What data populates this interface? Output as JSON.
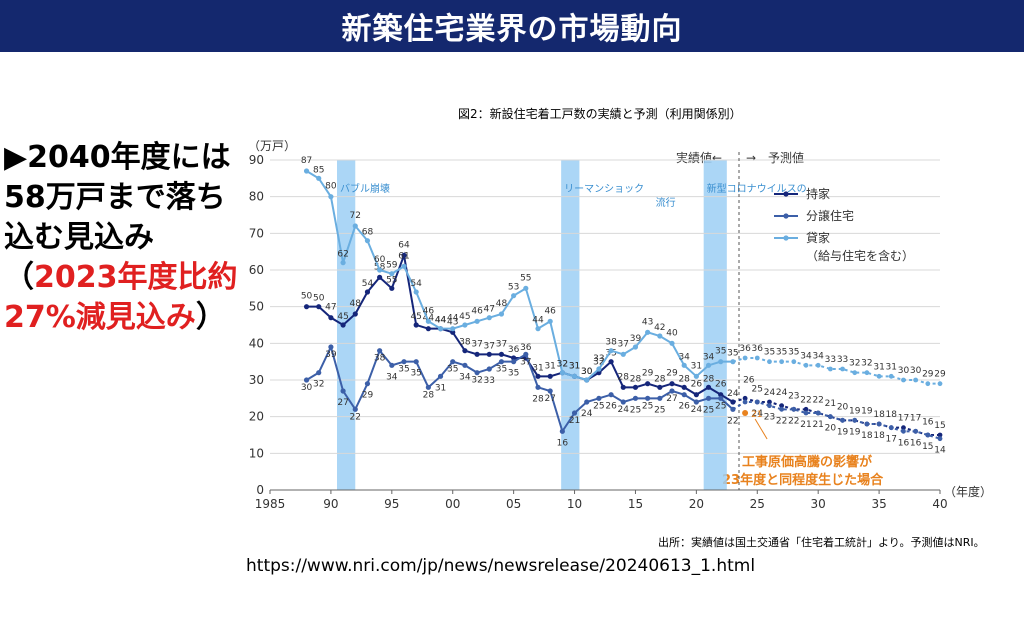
{
  "header": {
    "title": "新築住宅業界の市場動向"
  },
  "side": {
    "text_black": "▶2040年度には58万戸まで落ち込む見込み（",
    "text_red": "2023年度比約27%減見込み",
    "text_close": "）"
  },
  "url": "https://www.nri.com/jp/news/newsrelease/20240613_1.html",
  "colors": {
    "header_bg": "#14286e",
    "mochiie": "#15267a",
    "bunjo": "#3c5fa8",
    "kashiya": "#6aaee0",
    "band": "#9ccff5",
    "annotation": "#e8821e",
    "highlight_red": "#e02020"
  },
  "chart_data": {
    "type": "line",
    "title": "図2：新設住宅着工戸数の実績と予測（利用関係別）",
    "ylabel": "（万戸）",
    "xlabel": "（年度）",
    "ylim": [
      0,
      90
    ],
    "xlim": [
      1985,
      2040
    ],
    "yticks": [
      0,
      10,
      20,
      30,
      40,
      50,
      60,
      70,
      80,
      90
    ],
    "xticks": [
      1985,
      1990,
      1995,
      2000,
      2005,
      2010,
      2015,
      2020,
      2025,
      2030,
      2035,
      2040
    ],
    "xtick_labels": [
      "1985",
      "90",
      "95",
      "00",
      "05",
      "10",
      "15",
      "20",
      "25",
      "30",
      "35",
      "40"
    ],
    "grid": true,
    "legend_position": "top-right",
    "divider_year": 2023.5,
    "divider_left_label": "実績値←",
    "divider_right_label": "→　予測値",
    "shaded_periods": [
      {
        "label": "バブル崩壊",
        "from": 1990.5,
        "to": 1992.0
      },
      {
        "label": "リーマンショック",
        "from": 2008.9,
        "to": 2010.4
      },
      {
        "label": "新型コロナウイルスの",
        "label2": "流行",
        "from": 2020.6,
        "to": 2022.5
      }
    ],
    "series": [
      {
        "name": "持家",
        "color": "#15267a",
        "x": [
          1988,
          1989,
          1990,
          1991,
          1992,
          1993,
          1994,
          1995,
          1996,
          1997,
          1998,
          1999,
          2000,
          2001,
          2002,
          2003,
          2004,
          2005,
          2006,
          2007,
          2008,
          2009,
          2010,
          2011,
          2012,
          2013,
          2014,
          2015,
          2016,
          2017,
          2018,
          2019,
          2020,
          2021,
          2022,
          2023
        ],
        "values": [
          50,
          50,
          47,
          45,
          48,
          54,
          58,
          55,
          64,
          45,
          44,
          44,
          43,
          38,
          37,
          37,
          37,
          36,
          36,
          31,
          31,
          32,
          31,
          30,
          32,
          35,
          28,
          28,
          29,
          28,
          29,
          28,
          26,
          28,
          26,
          24
        ],
        "labels": [
          "50",
          "50",
          "47",
          "45",
          "48",
          "54",
          "58",
          "55",
          "64",
          "45",
          "44",
          "44",
          "43",
          "38",
          "37",
          "37",
          "37",
          "36",
          "36",
          "31",
          "31",
          "32",
          "31",
          "30",
          "32",
          "35",
          "28",
          "28",
          "29",
          "28",
          "29",
          "28",
          "26",
          "28",
          "26",
          "24"
        ],
        "forecast_x": [
          2024,
          2025,
          2026,
          2027,
          2028,
          2029,
          2030,
          2031,
          2032,
          2033,
          2034,
          2035,
          2036,
          2037,
          2038,
          2039,
          2040
        ],
        "forecast_values": [
          25,
          24,
          24,
          23,
          22,
          22,
          21,
          20,
          19,
          19,
          18,
          18,
          17,
          17,
          16,
          15,
          15
        ],
        "forecast_labels": [
          "",
          "",
          "",
          "",
          "",
          "",
          "",
          "",
          "",
          "",
          "",
          "",
          "",
          "",
          "",
          "",
          ""
        ]
      },
      {
        "name": "分譲住宅",
        "color": "#3c5fa8",
        "x": [
          1988,
          1989,
          1990,
          1991,
          1992,
          1993,
          1994,
          1995,
          1996,
          1997,
          1998,
          1999,
          2000,
          2001,
          2002,
          2003,
          2004,
          2005,
          2006,
          2007,
          2008,
          2009,
          2010,
          2011,
          2012,
          2013,
          2014,
          2015,
          2016,
          2017,
          2018,
          2019,
          2020,
          2021,
          2022,
          2023
        ],
        "values": [
          30,
          32,
          39,
          27,
          22,
          29,
          38,
          34,
          35,
          35,
          28,
          31,
          35,
          34,
          32,
          33,
          35,
          35,
          37,
          28,
          27,
          16,
          21,
          24,
          25,
          26,
          24,
          25,
          25,
          25,
          27,
          26,
          24,
          25,
          25,
          22
        ],
        "labels": [
          "30",
          "32",
          "39",
          "27",
          "22",
          "29",
          "38",
          "34",
          "35",
          "35",
          "28",
          "31",
          "35",
          "34",
          "32",
          "33",
          "35",
          "35",
          "37",
          "28",
          "27",
          "16",
          "21",
          "24",
          "25",
          "26",
          "24",
          "25",
          "25",
          "25",
          "27",
          "26",
          "24",
          "25",
          "25",
          "22"
        ],
        "forecast_x": [
          2024,
          2025,
          2026,
          2027,
          2028,
          2029,
          2030,
          2031,
          2032,
          2033,
          2034,
          2035,
          2036,
          2037,
          2038,
          2039,
          2040
        ],
        "forecast_values": [
          24,
          24,
          23,
          22,
          22,
          21,
          21,
          20,
          19,
          19,
          18,
          18,
          17,
          16,
          16,
          15,
          14
        ],
        "forecast_labels": [
          "",
          "24",
          "23",
          "22",
          "22",
          "21",
          "21",
          "20",
          "19",
          "19",
          "18",
          "18",
          "17",
          "16",
          "16",
          "15",
          "14"
        ]
      },
      {
        "name": "貸家",
        "name_line2": "（給与住宅を含む）",
        "color": "#6aaee0",
        "x": [
          1988,
          1989,
          1990,
          1991,
          1992,
          1993,
          1994,
          1995,
          1996,
          1997,
          1998,
          1999,
          2000,
          2001,
          2002,
          2003,
          2004,
          2005,
          2006,
          2007,
          2008,
          2009,
          2010,
          2011,
          2012,
          2013,
          2014,
          2015,
          2016,
          2017,
          2018,
          2019,
          2020,
          2021,
          2022,
          2023
        ],
        "values": [
          87,
          85,
          80,
          62,
          72,
          68,
          60,
          59,
          61,
          54,
          46,
          44,
          44,
          45,
          46,
          47,
          48,
          53,
          55,
          44,
          46,
          32,
          31,
          30,
          33,
          38,
          37,
          39,
          43,
          42,
          40,
          34,
          31,
          34,
          35,
          35
        ],
        "labels": [
          "87",
          "85",
          "80",
          "62",
          "72",
          "68",
          "60",
          "59",
          "61",
          "54",
          "46",
          "44",
          "44",
          "45",
          "46",
          "47",
          "48",
          "53",
          "55",
          "44",
          "46",
          "32",
          "31",
          "30",
          "33",
          "38",
          "37",
          "39",
          "43",
          "42",
          "40",
          "34",
          "31",
          "34",
          "35",
          "35"
        ],
        "forecast_x": [
          2024,
          2025,
          2026,
          2027,
          2028,
          2029,
          2030,
          2031,
          2032,
          2033,
          2034,
          2035,
          2036,
          2037,
          2038,
          2039,
          2040
        ],
        "forecast_values": [
          36,
          36,
          35,
          35,
          35,
          34,
          34,
          33,
          33,
          32,
          32,
          31,
          31,
          30,
          30,
          29,
          29
        ],
        "forecast_labels": [
          "36",
          "36",
          "35",
          "35",
          "35",
          "34",
          "34",
          "33",
          "33",
          "32",
          "32",
          "31",
          "31",
          "30",
          "30",
          "29",
          "29"
        ]
      }
    ],
    "upper_forecast_labels": [
      "25",
      "24",
      "24",
      "23",
      "22",
      "22",
      "21",
      "20",
      "19",
      "19",
      "18",
      "18",
      "17",
      "17",
      "16",
      "15"
    ],
    "scenario": {
      "label1": "工事原価高騰の影響が",
      "label2": "23年度と同程度生じた場合",
      "x": 2024,
      "value": 21,
      "point_label": "21",
      "extra_label_x": 2024,
      "extra_label_value": 26,
      "extra_label": "26"
    },
    "source": "出所：実績値は国土交通省「住宅着工統計」より。予測値はNRI。"
  }
}
